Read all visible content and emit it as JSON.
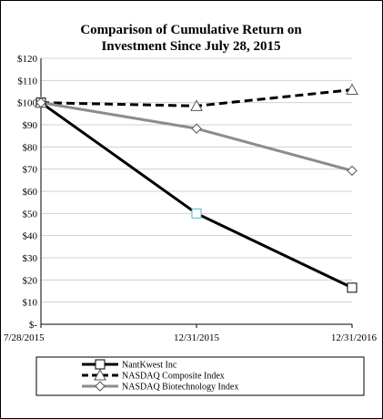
{
  "chart_data": {
    "type": "line",
    "title_lines": [
      "Comparison of Cumulative Return on",
      "Investment Since July 28, 2015"
    ],
    "categories": [
      "7/28/2015",
      "12/31/2015",
      "12/31/2016"
    ],
    "y_ticks": [
      "$120",
      "$110",
      "$100",
      "$90",
      "$80",
      "$70",
      "$60",
      "$50",
      "$40",
      "$30",
      "$20",
      "$10",
      "$-"
    ],
    "ylim": [
      0,
      120
    ],
    "y_step": 10,
    "grid": true,
    "legend_position": "bottom",
    "series": [
      {
        "name": "NantKwest Inc",
        "values": [
          100,
          50,
          16.5
        ],
        "color": "#000000",
        "dash": "solid",
        "marker": "square"
      },
      {
        "name": "NASDAQ Composite Index",
        "values": [
          100,
          98.5,
          105.8
        ],
        "color": "#000000",
        "dash": "dashed",
        "marker": "triangle"
      },
      {
        "name": "NASDAQ Biotechnology Index",
        "values": [
          100,
          88.3,
          69.3
        ],
        "color": "#8c8c8c",
        "dash": "solid",
        "marker": "diamond"
      }
    ]
  }
}
